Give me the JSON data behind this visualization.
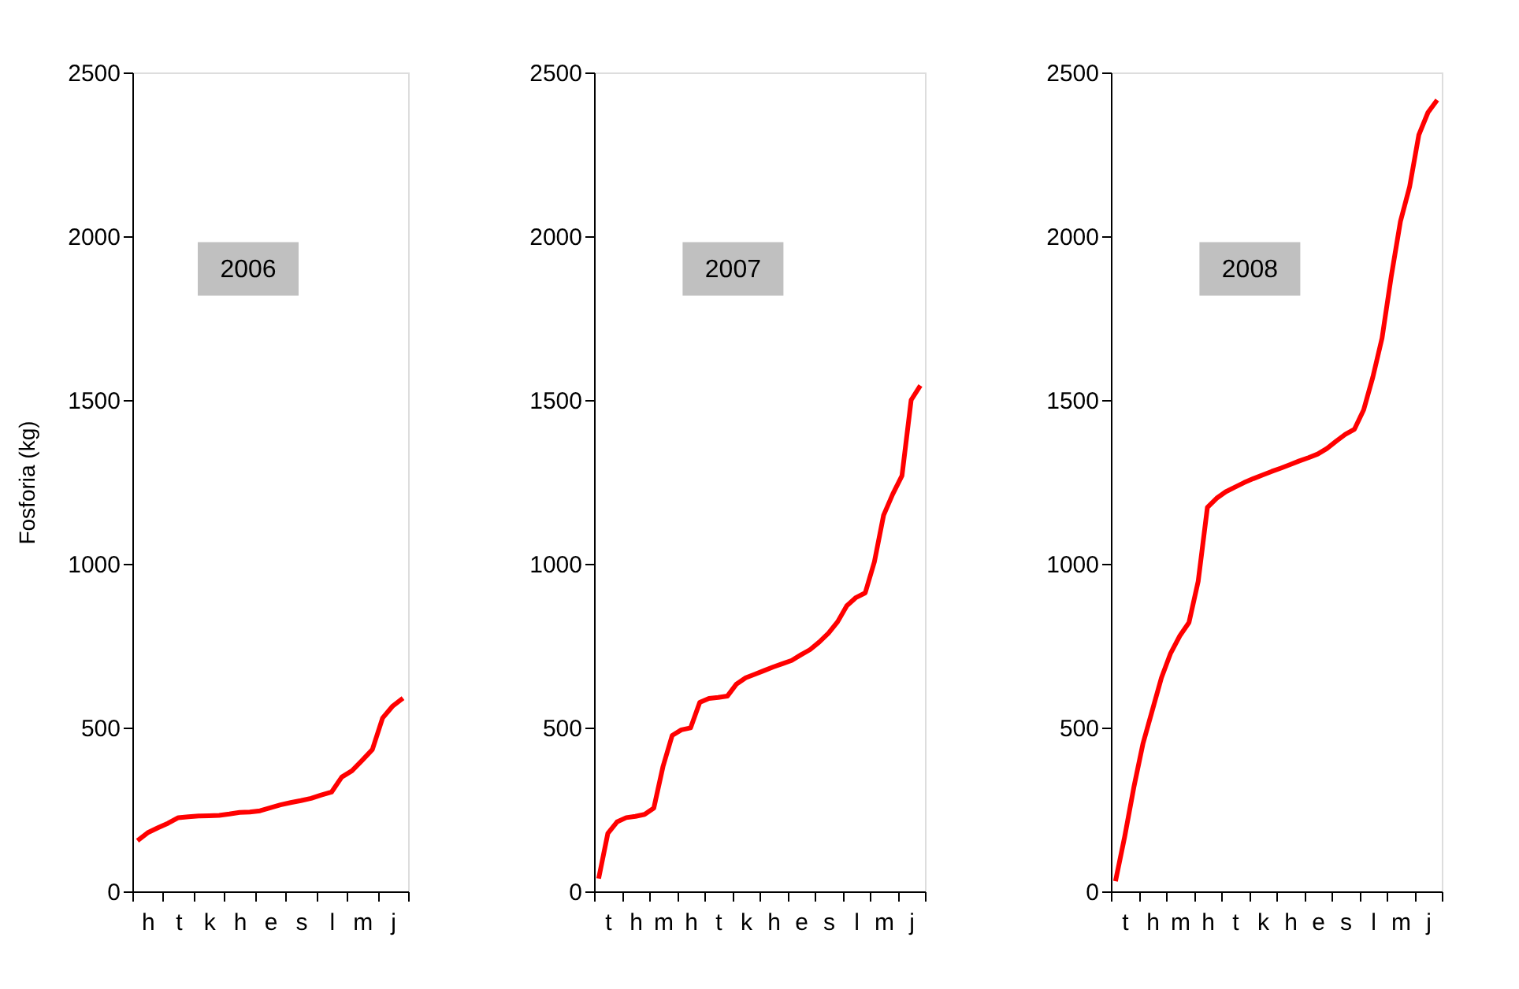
{
  "chart_data": [
    {
      "type": "line",
      "ylabel": "Fosforia (kg)",
      "annotations": [
        "2006"
      ],
      "grid": false,
      "categories": [
        null,
        "h",
        null,
        null,
        "t",
        null,
        null,
        "k",
        null,
        null,
        "h",
        null,
        null,
        "e",
        null,
        null,
        "s",
        null,
        null,
        "l",
        null,
        null,
        "m",
        null,
        null,
        "j",
        null
      ],
      "series": [
        {
          "color": "#ff0000",
          "values": [
            155,
            179,
            194,
            208,
            225,
            228,
            230,
            231,
            232,
            236,
            241,
            242,
            246,
            255,
            264,
            271,
            277,
            284,
            294,
            303,
            349,
            368,
            400,
            433,
            529,
            566,
            590
          ]
        }
      ],
      "ylim": [
        0,
        2500
      ],
      "yticks": [
        0,
        500,
        1000,
        1500,
        2000,
        2500
      ]
    },
    {
      "type": "line",
      "annotations": [
        "2007"
      ],
      "grid": false,
      "categories": [
        null,
        "t",
        null,
        null,
        "h",
        null,
        null,
        "m",
        null,
        null,
        "h",
        null,
        null,
        "t",
        null,
        null,
        "k",
        null,
        null,
        "h",
        null,
        null,
        "e",
        null,
        null,
        "s",
        null,
        null,
        "l",
        null,
        null,
        "m",
        null,
        null,
        "j",
        null
      ],
      "series": [
        {
          "color": "#ff0000",
          "values": [
            39,
            177,
            212,
            225,
            229,
            235,
            254,
            381,
            476,
            493,
            499,
            577,
            589,
            592,
            596,
            633,
            652,
            663,
            674,
            685,
            695,
            705,
            722,
            738,
            761,
            788,
            823,
            872,
            897,
            911,
            1006,
            1148,
            1213,
            1269,
            1500,
            1544
          ]
        }
      ],
      "ylim": [
        0,
        2500
      ],
      "yticks": [
        0,
        500,
        1000,
        1500,
        2000,
        2500
      ]
    },
    {
      "type": "line",
      "annotations": [
        "2008"
      ],
      "grid": false,
      "categories": [
        null,
        "t",
        null,
        null,
        "h",
        null,
        null,
        "m",
        null,
        null,
        "h",
        null,
        null,
        "t",
        null,
        null,
        "k",
        null,
        null,
        "h",
        null,
        null,
        "e",
        null,
        null,
        "s",
        null,
        null,
        "l",
        null,
        null,
        "m",
        null,
        null,
        "j",
        null
      ],
      "series": [
        {
          "color": "#ff0000",
          "values": [
            31,
            167,
            318,
            452,
            552,
            652,
            727,
            780,
            821,
            947,
            1172,
            1200,
            1220,
            1234,
            1248,
            1260,
            1271,
            1282,
            1292,
            1303,
            1314,
            1324,
            1335,
            1352,
            1374,
            1395,
            1411,
            1470,
            1570,
            1689,
            1877,
            2045,
            2151,
            2309,
            2378,
            2416
          ]
        }
      ],
      "ylim": [
        0,
        2500
      ],
      "yticks": [
        0,
        500,
        1000,
        1500,
        2000,
        2500
      ]
    }
  ]
}
